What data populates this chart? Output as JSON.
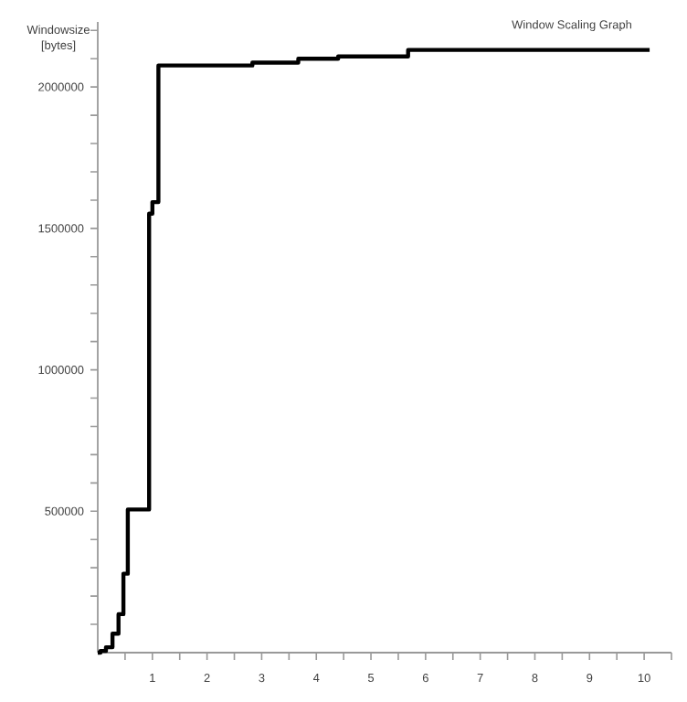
{
  "chart_data": {
    "type": "step",
    "title": "Window Scaling Graph",
    "ylabel": "Windowsize [bytes]",
    "x": [
      0,
      0.05,
      0.15,
      0.27,
      0.38,
      0.47,
      0.55,
      0.64,
      0.94,
      1.0,
      1.11,
      2.83,
      3.67,
      4.4,
      5.68,
      10.1
    ],
    "series": [
      {
        "color": "#000000",
        "values": [
          0,
          6000,
          19000,
          67000,
          136000,
          279000,
          506000,
          506000,
          1552000,
          1593000,
          2076000,
          2086000,
          2100000,
          2108000,
          2131000,
          2131000
        ]
      }
    ],
    "xlim": [
      0,
      10.5
    ],
    "ylim": [
      0,
      2230000
    ],
    "xticks": [
      {
        "value": 0.5,
        "label": null
      },
      1,
      {
        "value": 1.5,
        "label": null
      },
      2,
      {
        "value": 2.5,
        "label": null
      },
      3,
      {
        "value": 3.5,
        "label": null
      },
      4,
      {
        "value": 4.5,
        "label": null
      },
      5,
      {
        "value": 5.5,
        "label": null
      },
      6,
      {
        "value": 6.5,
        "label": null
      },
      7,
      {
        "value": 7.5,
        "label": null
      },
      8,
      {
        "value": 8.5,
        "label": null
      },
      9,
      {
        "value": 9.5,
        "label": null
      },
      10,
      {
        "value": 10.5,
        "label": null
      }
    ],
    "yticks": [
      {
        "value": 100000,
        "label": null
      },
      {
        "value": 200000,
        "label": null
      },
      {
        "value": 300000,
        "label": null
      },
      {
        "value": 400000,
        "label": null
      },
      500000,
      {
        "value": 600000,
        "label": null
      },
      {
        "value": 700000,
        "label": null
      },
      {
        "value": 800000,
        "label": null
      },
      {
        "value": 900000,
        "label": null
      },
      1000000,
      {
        "value": 1100000,
        "label": null
      },
      {
        "value": 1200000,
        "label": null
      },
      {
        "value": 1300000,
        "label": null
      },
      {
        "value": 1400000,
        "label": null
      },
      1500000,
      {
        "value": 1600000,
        "label": null
      },
      {
        "value": 1700000,
        "label": null
      },
      {
        "value": 1800000,
        "label": null
      },
      {
        "value": 1900000,
        "label": null
      },
      2000000,
      {
        "value": 2100000,
        "label": null
      },
      {
        "value": 2200000,
        "label": null
      }
    ],
    "grid": false,
    "marker": "none",
    "line_style": "solid"
  }
}
